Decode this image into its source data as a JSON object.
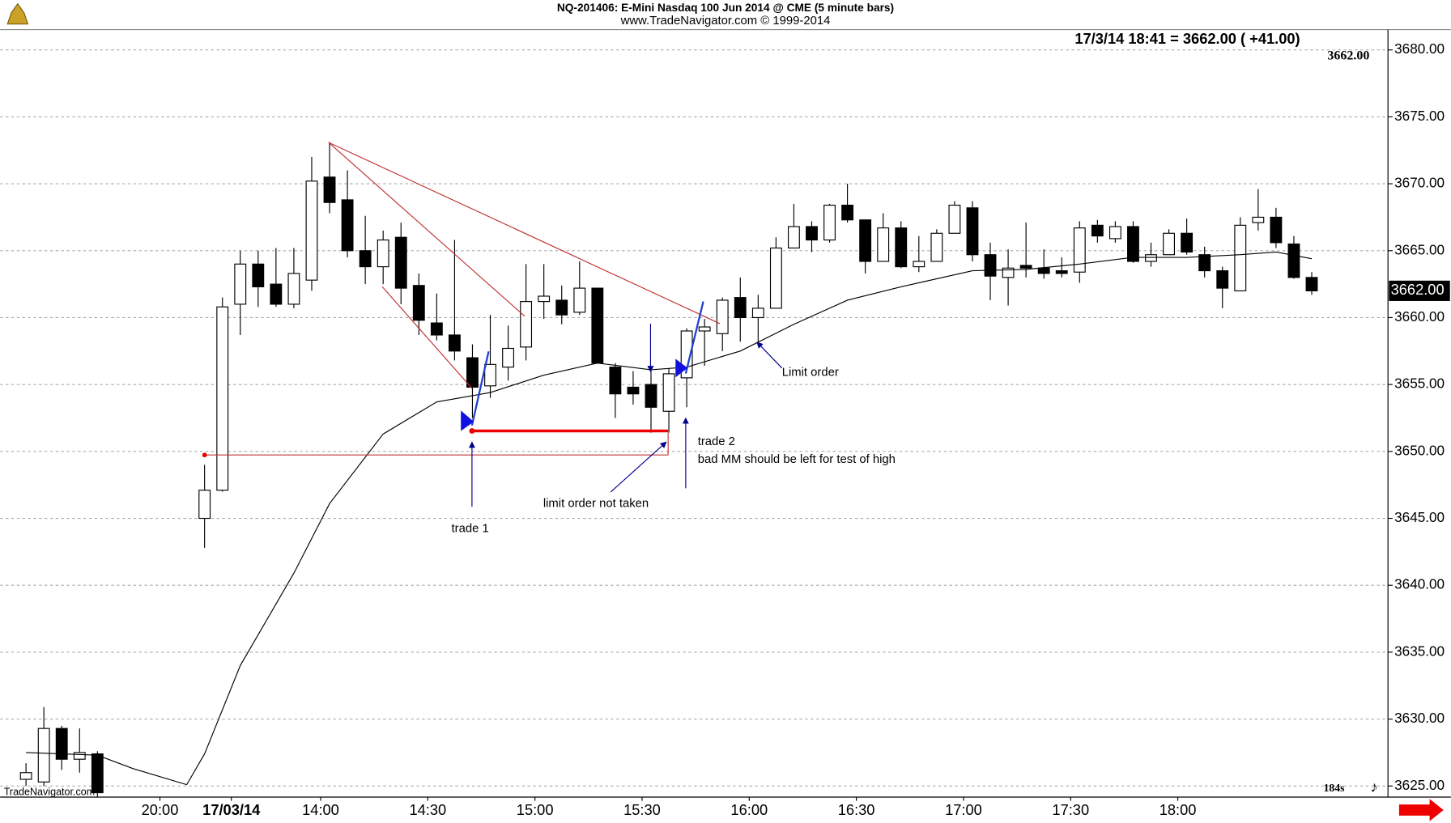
{
  "chart_data": {
    "type": "candlestick",
    "title": "NQ-201406:  E-Mini Nasdaq 100 Jun 2014 @ CME  (5 minute bars)",
    "subtitle": "www.TradeNavigator.com © 1999-2014",
    "quote": "17/3/14 18:41 = 3662.00  ( +41.00)",
    "last_price": {
      "value": 3662,
      "label": "3662.00"
    },
    "timer": "184s",
    "watermark": "TradeNavigator.com",
    "annotations": [
      "trade 1",
      "limit order not taken",
      "trade 2",
      "bad MM should be left for test of high",
      "Limit order"
    ],
    "up_color": "#ffffff",
    "down_color": "#000000",
    "x": [
      0,
      1,
      2,
      3,
      4,
      10,
      11,
      12,
      13,
      14,
      15,
      16,
      17,
      18,
      19,
      20,
      21,
      22,
      23,
      24,
      25,
      26,
      27,
      28,
      29,
      30,
      31,
      32,
      33,
      34,
      35,
      36,
      37,
      38,
      39,
      40,
      41,
      42,
      43,
      44,
      45,
      46,
      47,
      48,
      49,
      50,
      51,
      52,
      53,
      54,
      55,
      56,
      57,
      58,
      59,
      60,
      61,
      62,
      63,
      64,
      65,
      66,
      67,
      68,
      69,
      70,
      71,
      72
    ],
    "open": [
      3625.5,
      3625.3,
      3629.3,
      3627.0,
      3627.4,
      3645.0,
      3647.1,
      3661.0,
      3664.0,
      3662.5,
      3661.0,
      3662.8,
      3670.5,
      3668.8,
      3665.0,
      3663.8,
      3666.0,
      3662.4,
      3659.6,
      3658.7,
      3657.0,
      3654.9,
      3656.3,
      3657.8,
      3661.2,
      3661.3,
      3660.4,
      3662.2,
      3656.3,
      3654.8,
      3655.0,
      3653.0,
      3655.5,
      3659.0,
      3658.8,
      3661.5,
      3660.0,
      3660.7,
      3665.2,
      3666.8,
      3665.8,
      3668.4,
      3667.3,
      3664.2,
      3666.7,
      3663.8,
      3664.2,
      3666.3,
      3668.2,
      3664.7,
      3663.0,
      3663.9,
      3663.7,
      3663.5,
      3663.4,
      3666.9,
      3665.9,
      3666.8,
      3664.2,
      3664.7,
      3666.3,
      3664.7,
      3663.5,
      3662.0,
      3667.1,
      3667.5,
      3665.5,
      3663.0
    ],
    "high": [
      3626.7,
      3630.9,
      3629.5,
      3629.3,
      3627.6,
      3649.0,
      3661.5,
      3665.0,
      3665.0,
      3665.2,
      3665.2,
      3672.0,
      3673.1,
      3671.0,
      3667.6,
      3666.5,
      3667.1,
      3663.3,
      3661.8,
      3665.8,
      3658.0,
      3660.2,
      3659.4,
      3664.0,
      3664.0,
      3662.4,
      3664.2,
      3662.2,
      3656.6,
      3656.0,
      3656.0,
      3656.2,
      3659.2,
      3659.9,
      3661.5,
      3663.0,
      3661.7,
      3666.0,
      3668.5,
      3667.2,
      3668.5,
      3670.0,
      3667.3,
      3667.8,
      3667.2,
      3666.1,
      3666.6,
      3668.7,
      3668.7,
      3665.6,
      3665.1,
      3667.1,
      3665.1,
      3664.5,
      3667.2,
      3667.3,
      3667.2,
      3667.2,
      3665.6,
      3666.6,
      3667.4,
      3665.3,
      3663.8,
      3667.5,
      3669.6,
      3668.2,
      3666.1,
      3663.4
    ],
    "low": [
      3625.0,
      3625.0,
      3626.2,
      3626.0,
      3624.2,
      3642.8,
      3647.0,
      3658.7,
      3660.8,
      3660.8,
      3660.7,
      3662.0,
      3667.8,
      3664.5,
      3662.5,
      3662.5,
      3661.0,
      3658.7,
      3658.3,
      3656.8,
      3652.5,
      3654.0,
      3655.3,
      3656.8,
      3659.9,
      3659.5,
      3660.2,
      3656.6,
      3652.5,
      3653.5,
      3651.4,
      3651.4,
      3653.3,
      3656.4,
      3657.5,
      3658.2,
      3658.2,
      3660.7,
      3665.2,
      3664.9,
      3665.6,
      3667.1,
      3663.3,
      3664.2,
      3663.7,
      3663.4,
      3664.2,
      3666.3,
      3664.2,
      3661.3,
      3660.9,
      3663.0,
      3662.9,
      3663.0,
      3662.6,
      3665.6,
      3665.6,
      3664.1,
      3663.8,
      3664.7,
      3664.7,
      3663.0,
      3660.7,
      3662.0,
      3666.5,
      3665.2,
      3662.9,
      3661.7
    ],
    "close": [
      3626.0,
      3629.3,
      3627.0,
      3627.5,
      3624.5,
      3647.1,
      3660.8,
      3664.0,
      3662.3,
      3661.0,
      3663.3,
      3670.2,
      3668.6,
      3665.0,
      3663.8,
      3665.8,
      3662.2,
      3659.8,
      3658.7,
      3657.5,
      3654.8,
      3656.5,
      3657.7,
      3661.2,
      3661.6,
      3660.2,
      3662.2,
      3656.6,
      3654.3,
      3654.3,
      3653.3,
      3655.8,
      3659.0,
      3659.3,
      3661.3,
      3660.0,
      3660.7,
      3665.2,
      3666.8,
      3665.8,
      3668.4,
      3667.3,
      3664.2,
      3666.7,
      3663.8,
      3664.2,
      3666.3,
      3668.4,
      3664.7,
      3663.1,
      3663.7,
      3663.7,
      3663.3,
      3663.3,
      3666.7,
      3666.1,
      3666.8,
      3664.2,
      3664.7,
      3666.3,
      3664.9,
      3663.5,
      3662.2,
      3666.9,
      3667.5,
      3665.6,
      3663.0,
      3662.0
    ],
    "ma": {
      "color": "#000000",
      "x": [
        0,
        4,
        6,
        9,
        10,
        12,
        15,
        17,
        20,
        23,
        26,
        29,
        32,
        35,
        37,
        40,
        43,
        46,
        49,
        53,
        56,
        59,
        62,
        65,
        68,
        70,
        72
      ],
      "values": [
        3627.5,
        3627.3,
        3626.3,
        3625.1,
        3627.4,
        3634.0,
        3640.9,
        3646.1,
        3651.3,
        3653.7,
        3654.4,
        3655.7,
        3656.6,
        3656.1,
        3656.3,
        3657.5,
        3659.5,
        3661.3,
        3662.3,
        3663.5,
        3663.6,
        3664.0,
        3664.5,
        3664.5,
        3664.7,
        3664.9,
        3664.4
      ]
    },
    "xlim": [
      -1.45,
      76.27
    ],
    "ylim": [
      3624.17,
      3681.52
    ],
    "xticks": [
      {
        "value": 7.5,
        "label": "20:00"
      },
      {
        "value": 11.5,
        "label": "17/03/14"
      },
      {
        "value": 16.5,
        "label": "14:00"
      },
      {
        "value": 22.5,
        "label": "14:30"
      },
      {
        "value": 28.5,
        "label": "15:00"
      },
      {
        "value": 34.5,
        "label": "15:30"
      },
      {
        "value": 40.5,
        "label": "16:00"
      },
      {
        "value": 46.5,
        "label": "16:30"
      },
      {
        "value": 52.5,
        "label": "17:00"
      },
      {
        "value": 58.5,
        "label": "17:30"
      },
      {
        "value": 64.5,
        "label": "18:00"
      }
    ],
    "yticks": [
      {
        "value": 3625,
        "label": "3625.00"
      },
      {
        "value": 3630,
        "label": "3630.00"
      },
      {
        "value": 3635,
        "label": "3635.00"
      },
      {
        "value": 3640,
        "label": "3640.00"
      },
      {
        "value": 3645,
        "label": "3645.00"
      },
      {
        "value": 3650,
        "label": "3650.00"
      },
      {
        "value": 3655,
        "label": "3655.00"
      },
      {
        "value": 3660,
        "label": "3660.00"
      },
      {
        "value": 3665,
        "label": "3665.00"
      },
      {
        "value": 3670,
        "label": "3670.00"
      },
      {
        "value": 3675,
        "label": "3675.00"
      },
      {
        "value": 3680,
        "label": "3680.00"
      }
    ],
    "grid": true
  }
}
